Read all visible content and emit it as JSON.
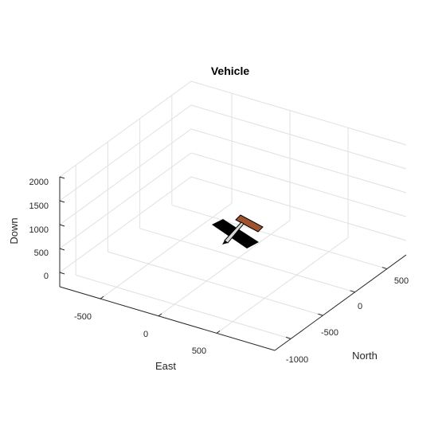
{
  "chart_data": {
    "type": "scatter",
    "title": "Vehicle",
    "xlabel": "North",
    "ylabel": "East",
    "zlabel": "Down",
    "north_ticks": [
      -1000,
      -500,
      0,
      500
    ],
    "east_ticks": [
      -500,
      0,
      500
    ],
    "down_ticks": [
      0,
      500,
      1000,
      1500,
      2000
    ],
    "north_tick_labels": [
      "-1000",
      "-500",
      "0",
      "500"
    ],
    "east_tick_labels": [
      "-500",
      "0",
      "500"
    ],
    "down_tick_labels": [
      "0",
      "500",
      "1000",
      "1500",
      "2000"
    ],
    "north_lim": [
      -1250,
      800
    ],
    "east_lim": [
      -850,
      1000
    ],
    "down_lim": [
      -300,
      2000
    ],
    "grid": true,
    "vehicle": {
      "north": 0,
      "east": 0,
      "down": 1000,
      "fuselage_color": "#d9d9d9",
      "wing_color": "#000000",
      "tail_color": "#a0522d"
    }
  }
}
